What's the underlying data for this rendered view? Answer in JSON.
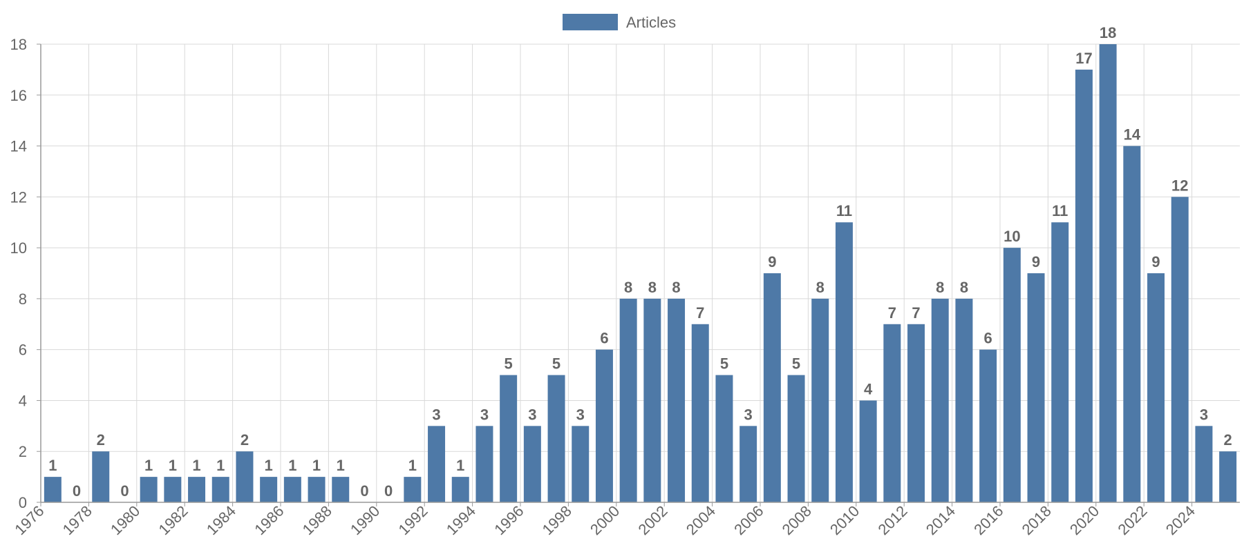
{
  "chart_data": {
    "type": "bar",
    "categories": [
      "1976",
      "1977",
      "1978",
      "1979",
      "1980",
      "1981",
      "1982",
      "1983",
      "1984",
      "1985",
      "1986",
      "1987",
      "1988",
      "1989",
      "1990",
      "1991",
      "1992",
      "1993",
      "1994",
      "1995",
      "1996",
      "1997",
      "1998",
      "1999",
      "2000",
      "2001",
      "2002",
      "2003",
      "2004",
      "2005",
      "2006",
      "2007",
      "2008",
      "2009",
      "2010",
      "2011",
      "2012",
      "2013",
      "2014",
      "2015",
      "2016",
      "2017",
      "2018",
      "2019",
      "2020",
      "2021",
      "2022",
      "2023",
      "2024",
      "2025"
    ],
    "x_tick_labels": [
      "1976",
      "1978",
      "1980",
      "1982",
      "1984",
      "1986",
      "1988",
      "1990",
      "1992",
      "1994",
      "1996",
      "1998",
      "2000",
      "2002",
      "2004",
      "2006",
      "2008",
      "2010",
      "2012",
      "2014",
      "2016",
      "2018",
      "2020",
      "2022",
      "2024"
    ],
    "series": [
      {
        "name": "Articles",
        "color": "#4e79a7",
        "values": [
          1,
          0,
          2,
          0,
          1,
          1,
          1,
          1,
          2,
          1,
          1,
          1,
          1,
          0,
          0,
          1,
          3,
          1,
          3,
          5,
          3,
          5,
          3,
          6,
          8,
          8,
          8,
          7,
          5,
          3,
          9,
          5,
          8,
          11,
          4,
          7,
          7,
          8,
          8,
          6,
          10,
          9,
          11,
          17,
          18,
          14,
          9,
          12,
          3,
          2
        ]
      }
    ],
    "y_ticks": [
      0,
      2,
      4,
      6,
      8,
      10,
      12,
      14,
      16,
      18
    ],
    "ylim": [
      0,
      18
    ],
    "grid": true,
    "legend_position": "top-center",
    "data_labels": true,
    "title": "",
    "xlabel": "",
    "ylabel": ""
  }
}
